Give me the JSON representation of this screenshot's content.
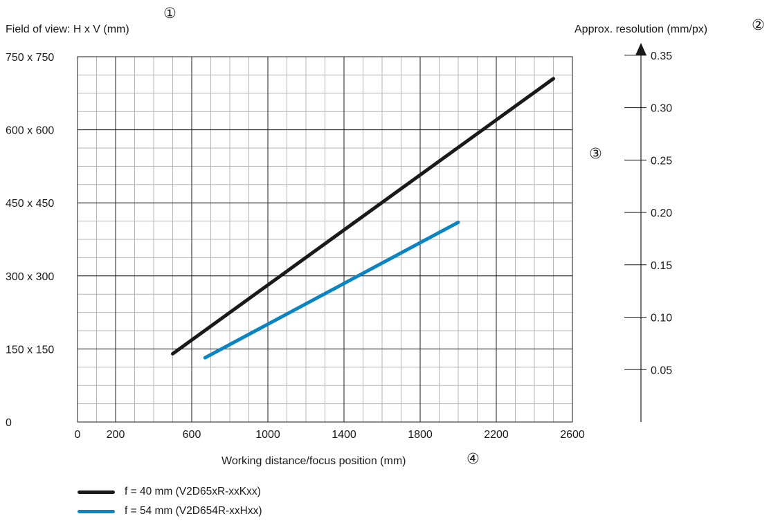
{
  "chart_data": {
    "type": "line",
    "ylabel": "Field of view: H x V (mm)",
    "xlabel": "Working distance/focus position (mm)",
    "y2label": "Approx. resolution (mm/px)",
    "x_ticks": [
      0,
      200,
      600,
      1000,
      1400,
      1800,
      2200,
      2600
    ],
    "y_ticks": [
      {
        "value": 0,
        "label": "0"
      },
      {
        "value": 150,
        "label": "150 x 150"
      },
      {
        "value": 300,
        "label": "300 x 300"
      },
      {
        "value": 450,
        "label": "450 x 450"
      },
      {
        "value": 600,
        "label": "600 x 600"
      },
      {
        "value": 750,
        "label": "750 x 750"
      }
    ],
    "y2_ticks": [
      "0.05",
      "0.10",
      "0.15",
      "0.20",
      "0.25",
      "0.30",
      "0.35"
    ],
    "y2_values": [
      0.05,
      0.1,
      0.15,
      0.2,
      0.25,
      0.3,
      0.35
    ],
    "xlim": [
      0,
      2600
    ],
    "ylim": [
      0,
      750
    ],
    "y2lim": [
      0,
      0.375
    ],
    "grid": true,
    "grid_minor_x": 100,
    "grid_minor_y": 37.5,
    "callouts": [
      "①",
      "②",
      "③",
      "④"
    ],
    "series": [
      {
        "name": "f = 40 mm (V2D65xR-xxKxx)",
        "color": "#1a1a1a",
        "points": [
          [
            500,
            140
          ],
          [
            2500,
            705
          ]
        ]
      },
      {
        "name": "f = 54 mm (V2D654R-xxHxx)",
        "color": "#0a84c2",
        "points": [
          [
            670,
            132
          ],
          [
            2000,
            410
          ]
        ]
      }
    ]
  }
}
